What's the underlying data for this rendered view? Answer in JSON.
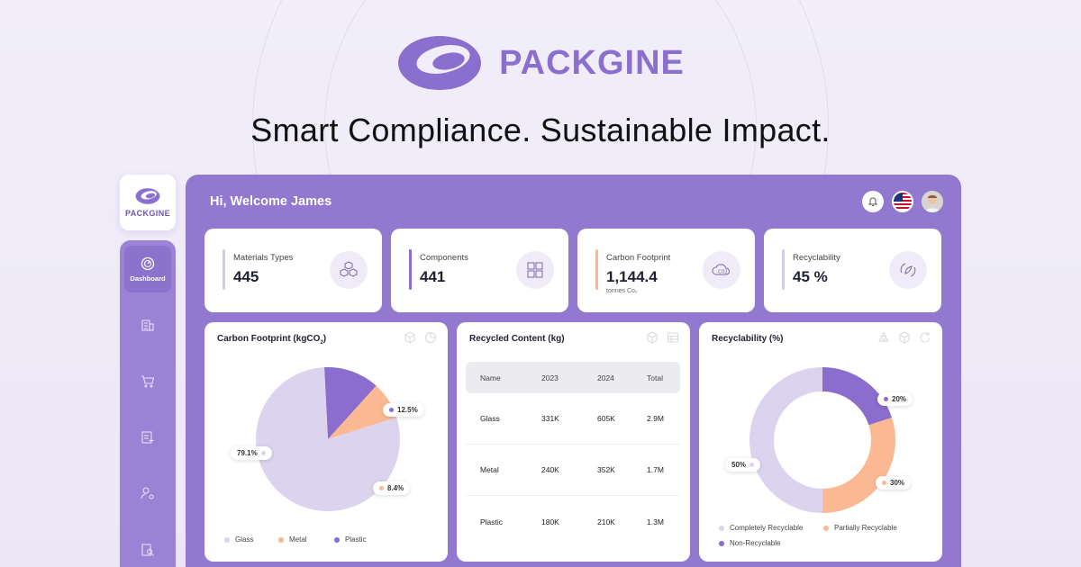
{
  "brand": {
    "name": "PACKGINE",
    "tagline": "Smart Compliance. Sustainable Impact."
  },
  "sidebar": {
    "logo_name": "PACKGINE",
    "items": [
      {
        "label": "Dashboard",
        "icon": "gauge-icon",
        "active": true
      },
      {
        "label": "",
        "icon": "building-icon"
      },
      {
        "label": "",
        "icon": "cart-icon"
      },
      {
        "label": "",
        "icon": "document-add-icon"
      },
      {
        "label": "",
        "icon": "user-settings-icon"
      },
      {
        "label": "",
        "icon": "document-search-icon"
      }
    ]
  },
  "header": {
    "welcome": "Hi, Welcome James"
  },
  "stats": [
    {
      "label": "Materials Types",
      "value": "445",
      "unit": "",
      "accent": "#d4cbe8",
      "icon": "cubes-icon"
    },
    {
      "label": "Components",
      "value": "441",
      "unit": "",
      "accent": "#8a6dcc",
      "icon": "puzzle-icon"
    },
    {
      "label": "Carbon Footprint",
      "value": "1,144.4",
      "unit": "tonnes Co₂",
      "accent": "#fbb993",
      "icon": "co2-cloud-icon"
    },
    {
      "label": "Recyclability",
      "value": "45 %",
      "unit": "",
      "accent": "#d4cbe8",
      "icon": "recycle-leaf-icon"
    }
  ],
  "carbon_card": {
    "title": "Carbon Footprint (kgCO",
    "title_sub": "2",
    "title_end": ")",
    "legend": [
      "Glass",
      "Metal",
      "Plastic"
    ]
  },
  "recycled_card": {
    "title": "Recycled Content (kg)",
    "columns": [
      "Name",
      "2023",
      "2024",
      "Total"
    ],
    "rows": [
      [
        "Glass",
        "331K",
        "605K",
        "2.9M"
      ],
      [
        "Metal",
        "240K",
        "352K",
        "1.7M"
      ],
      [
        "Plastic",
        "180K",
        "210K",
        "1.3M"
      ]
    ]
  },
  "recyclability_card": {
    "title": "Recyclability (%)",
    "legend": [
      "Completely Recyclable",
      "Partially Recyclable",
      "Non-Recyclable"
    ]
  },
  "colors": {
    "lavender": "#dcd3ee",
    "peach": "#fbb993",
    "purple": "#8a6dcc"
  },
  "chart_data": [
    {
      "type": "pie",
      "categories": [
        "Glass",
        "Metal",
        "Plastic"
      ],
      "values": [
        79.1,
        8.4,
        12.5
      ],
      "labels": [
        "79.1%",
        "8.4%",
        "12.5%"
      ],
      "legend": "bottom"
    },
    {
      "type": "pie",
      "variant": "donut",
      "categories": [
        "Completely Recyclable",
        "Partially Recyclable",
        "Non-Recyclable"
      ],
      "values": [
        50,
        30,
        20
      ],
      "labels": [
        "50%",
        "30%",
        "20%"
      ],
      "legend": "bottom"
    }
  ]
}
